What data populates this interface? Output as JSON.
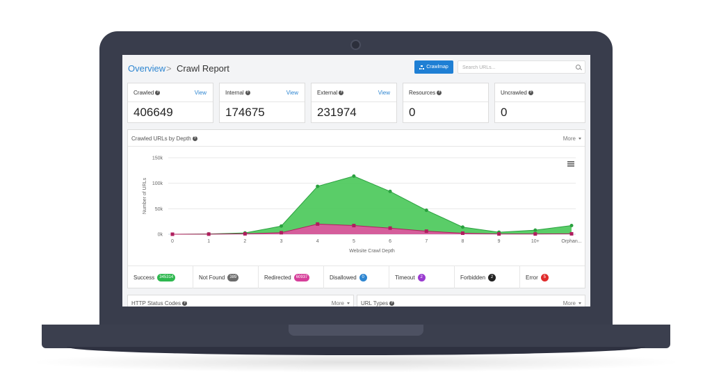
{
  "breadcrumb": {
    "root": "Overview",
    "separator": ">",
    "current": "Crawl Report"
  },
  "toolbar": {
    "crawlmap_label": "Crawlmap",
    "search_placeholder": "Search URLs..."
  },
  "cards": [
    {
      "label": "Crawled",
      "value": "406649",
      "link": "View"
    },
    {
      "label": "Internal",
      "value": "174675",
      "link": "View"
    },
    {
      "label": "External",
      "value": "231974",
      "link": "View"
    },
    {
      "label": "Resources",
      "value": "0"
    },
    {
      "label": "Uncrawled",
      "value": "0"
    }
  ],
  "chart_panel": {
    "title": "Crawled URLs by Depth",
    "more_label": "More"
  },
  "chart_data": {
    "type": "area",
    "categories": [
      "0",
      "1",
      "2",
      "3",
      "4",
      "5",
      "6",
      "7",
      "8",
      "9",
      "10+",
      "Orphan..."
    ],
    "series": [
      {
        "color": "#4cc95b",
        "values": [
          0,
          500,
          2500,
          16000,
          94000,
          114000,
          84000,
          47000,
          14000,
          4000,
          8000,
          17000
        ]
      },
      {
        "color": "#e0559f",
        "values": [
          0,
          200,
          800,
          3000,
          20000,
          17000,
          12000,
          6000,
          2000,
          500,
          500,
          800
        ]
      }
    ],
    "xlabel": "Website Crawl Depth",
    "ylabel": "Number of URLs",
    "yticks": [
      "0k",
      "50k",
      "100k",
      "150k"
    ],
    "ylim": [
      0,
      150000
    ],
    "grid": true
  },
  "status_row": [
    {
      "label": "Success",
      "count": "345314",
      "color": "#2eb84f"
    },
    {
      "label": "Not Found",
      "count": "389",
      "color": "#6b6b6b"
    },
    {
      "label": "Redirected",
      "count": "60937",
      "color": "#d63f9a"
    },
    {
      "label": "Disallowed",
      "count": "0",
      "color": "#2e86d1"
    },
    {
      "label": "Timeout",
      "count": "2",
      "color": "#9a3bd0"
    },
    {
      "label": "Forbidden",
      "count": "2",
      "color": "#222222"
    },
    {
      "label": "Error",
      "count": "5",
      "color": "#e02b2b"
    }
  ],
  "bottom_panels": [
    {
      "title": "HTTP Status Codes",
      "more_label": "More"
    },
    {
      "title": "URL Types",
      "more_label": "More"
    }
  ],
  "icons": {
    "help": "question-circle-icon",
    "menu": "hamburger-icon",
    "search": "search-icon",
    "crawlmap": "sitemap-icon"
  }
}
